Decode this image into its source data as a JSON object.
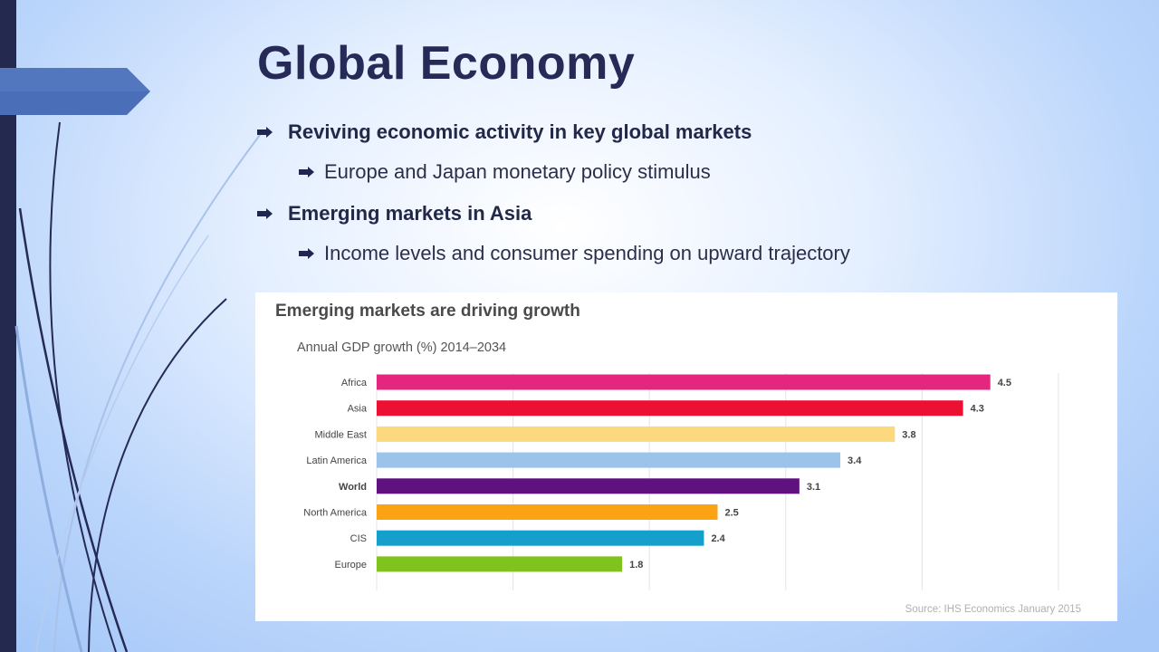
{
  "slide": {
    "title": "Global Economy",
    "bullets": [
      {
        "text": "Reviving economic activity in key global markets",
        "sub": "Europe and Japan monetary policy stimulus"
      },
      {
        "text": "Emerging markets in Asia",
        "sub": "Income levels and consumer spending on upward trajectory"
      }
    ],
    "colors": {
      "title": "#262a57",
      "left_bar": "#23294f",
      "accent_tab": "#4a6fb8"
    }
  },
  "chart_data": {
    "type": "bar",
    "orientation": "horizontal",
    "title": "Emerging markets are driving growth",
    "subtitle": "Annual GDP growth (%) 2014–2034",
    "source": "Source: IHS Economics January 2015",
    "categories": [
      "Africa",
      "Asia",
      "Middle East",
      "Latin America",
      "World",
      "North America",
      "CIS",
      "Europe"
    ],
    "values": [
      4.5,
      4.3,
      3.8,
      3.4,
      3.1,
      2.5,
      2.4,
      1.8
    ],
    "value_labels": [
      "4.5",
      "4.3",
      "3.8",
      "3.4",
      "3.1",
      "2.5",
      "2.4",
      "1.8"
    ],
    "colors": [
      "#e5267f",
      "#ec1133",
      "#fcd97e",
      "#9cc3ea",
      "#5f127f",
      "#fca314",
      "#159fcc",
      "#80c31f"
    ],
    "bold_categories": [
      "World"
    ],
    "xlim": [
      0,
      5
    ],
    "grid": true,
    "legend": "none"
  }
}
